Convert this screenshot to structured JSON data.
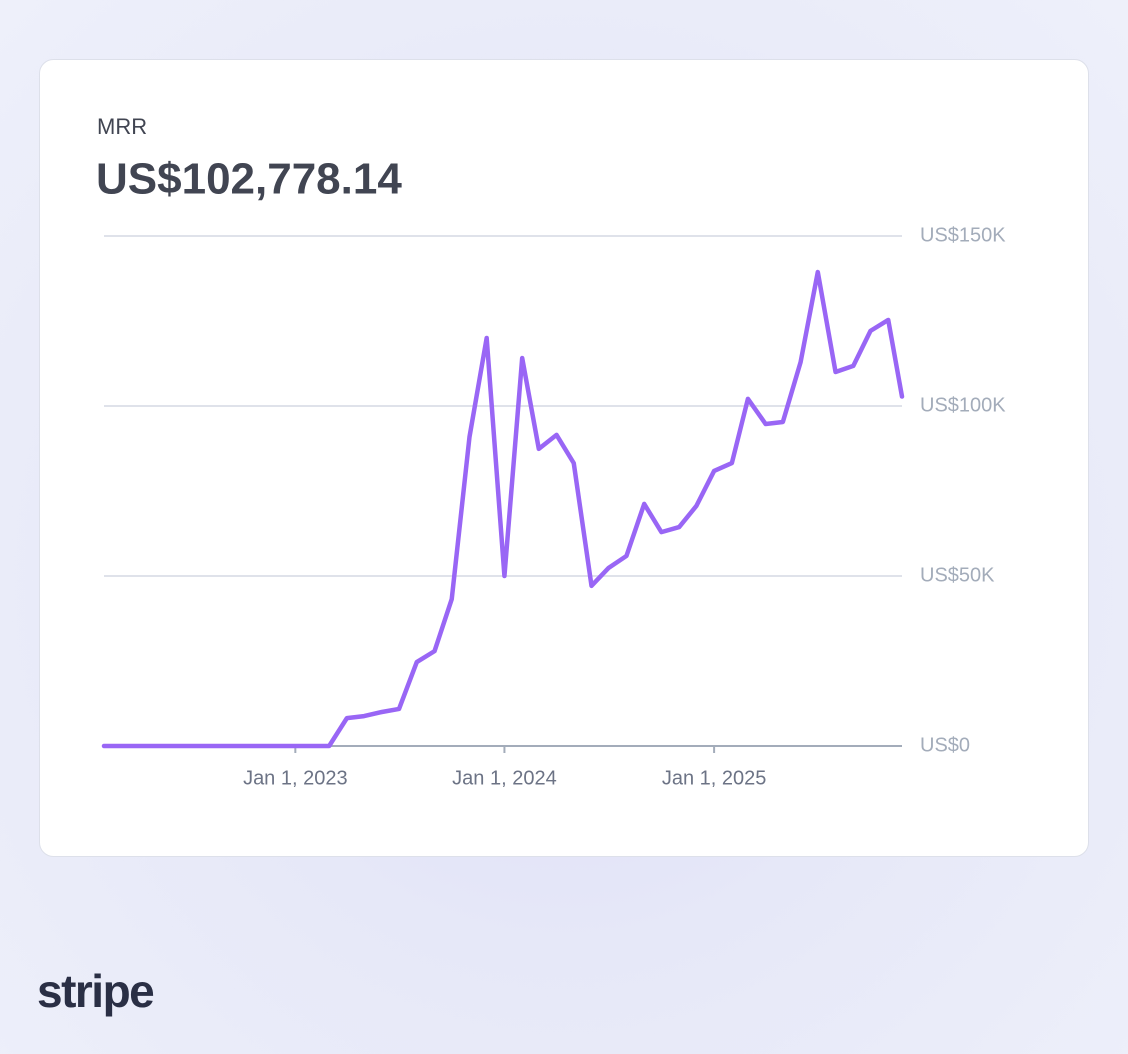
{
  "chart_data": {
    "type": "line",
    "title": "MRR",
    "subtitle": "US$102,778.14",
    "x": [
      "2022-02-01",
      "2022-03-01",
      "2022-04-01",
      "2022-05-01",
      "2022-06-01",
      "2022-07-01",
      "2022-08-01",
      "2022-09-01",
      "2022-10-01",
      "2022-11-01",
      "2022-12-01",
      "2023-01-01",
      "2023-02-01",
      "2023-03-01",
      "2023-04-01",
      "2023-05-01",
      "2023-06-01",
      "2023-07-01",
      "2023-08-01",
      "2023-09-01",
      "2023-10-01",
      "2023-11-01",
      "2023-12-01",
      "2024-01-01",
      "2024-02-01",
      "2024-03-01",
      "2024-04-01",
      "2024-05-01",
      "2024-06-01",
      "2024-07-01",
      "2024-08-01",
      "2024-09-01",
      "2024-10-01",
      "2024-11-01",
      "2024-12-01",
      "2025-01-01",
      "2025-02-01",
      "2025-03-01",
      "2025-04-01",
      "2025-05-01",
      "2025-06-01",
      "2025-07-01",
      "2025-08-01",
      "2025-09-01",
      "2025-10-01",
      "2025-11-01",
      "2025-11-25"
    ],
    "values": [
      0,
      0,
      0,
      0,
      0,
      0,
      0,
      0,
      0,
      0,
      0,
      0,
      0,
      0,
      8200,
      8800,
      10000,
      10900,
      24700,
      27900,
      43200,
      90900,
      120000,
      50000,
      114100,
      87400,
      91500,
      83200,
      47100,
      52400,
      55900,
      71200,
      62900,
      64400,
      70600,
      80900,
      83200,
      102100,
      94700,
      95300,
      112900,
      139400,
      110000,
      111800,
      122100,
      125300,
      102778.14
    ],
    "color": "#9966f5",
    "xlim": [
      "2022-02-01",
      "2025-11-25"
    ],
    "xticks": [
      {
        "value": "2023-01-01",
        "label": "Jan 1, 2023"
      },
      {
        "value": "2024-01-01",
        "label": "Jan 1, 2024"
      },
      {
        "value": "2025-01-01",
        "label": "Jan 1, 2025"
      }
    ],
    "ylim": [
      0,
      150000
    ],
    "yticks": [
      {
        "value": 0,
        "label": "US$0"
      },
      {
        "value": 50000,
        "label": "US$50K"
      },
      {
        "value": 100000,
        "label": "US$100K"
      },
      {
        "value": 150000,
        "label": "US$150K"
      }
    ],
    "grid": true
  },
  "footer": {
    "logo": "stripe"
  }
}
